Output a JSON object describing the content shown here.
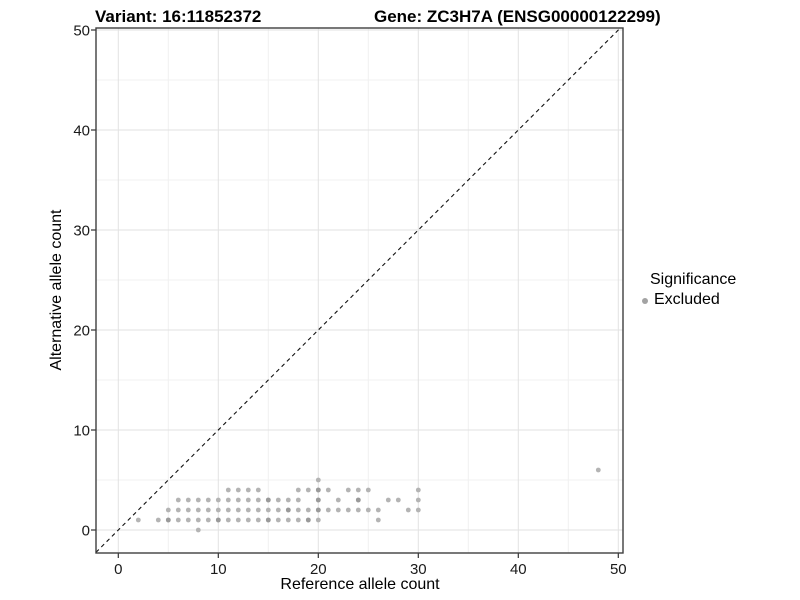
{
  "colors": {
    "background": "#ffffff",
    "panel_border": "#3f3f3f",
    "grid_major": "#e2e2e2",
    "grid_minor": "#f0f0f0",
    "identity_line": "#111111",
    "tick": "#333333",
    "text": "#1a1a1a",
    "point": "#b4b4b4",
    "point_dark": "#9a9a9a",
    "legend_dot": "#a3a3a3"
  },
  "chart_data": {
    "type": "scatter",
    "titles": {
      "left": "Variant: 16:11852372",
      "right": "Gene: ZC3H7A (ENSG00000122299)"
    },
    "xlabel": "Reference allele count",
    "ylabel": "Alternative allele count",
    "xlim": [
      -2.2,
      50.5
    ],
    "ylim": [
      -2.3,
      50.2
    ],
    "x_ticks": [
      0,
      10,
      20,
      30,
      40,
      50
    ],
    "y_ticks": [
      0,
      10,
      20,
      30,
      40,
      50
    ],
    "x_minor_ticks": [
      5,
      15,
      25,
      35,
      45
    ],
    "y_minor_ticks": [
      5,
      15,
      25,
      35,
      45
    ],
    "grid": true,
    "identity_line": {
      "equation": "y = x",
      "style": "dashed"
    },
    "legend": {
      "title": "Significance",
      "position": "right",
      "items": [
        {
          "label": "Excluded",
          "marker": "circle"
        }
      ]
    },
    "series": [
      {
        "name": "Excluded",
        "points": [
          [
            8,
            0
          ],
          [
            2,
            1
          ],
          [
            4,
            1
          ],
          [
            5,
            1
          ],
          [
            6,
            1
          ],
          [
            7,
            1
          ],
          [
            8,
            1
          ],
          [
            9,
            1
          ],
          [
            10,
            1
          ],
          [
            11,
            1
          ],
          [
            12,
            1
          ],
          [
            13,
            1
          ],
          [
            14,
            1
          ],
          [
            15,
            1
          ],
          [
            16,
            1
          ],
          [
            17,
            1
          ],
          [
            18,
            1
          ],
          [
            19,
            1
          ],
          [
            20,
            1
          ],
          [
            26,
            1
          ],
          [
            5,
            2
          ],
          [
            6,
            2
          ],
          [
            7,
            2
          ],
          [
            8,
            2
          ],
          [
            9,
            2
          ],
          [
            10,
            2
          ],
          [
            11,
            2
          ],
          [
            12,
            2
          ],
          [
            13,
            2
          ],
          [
            14,
            2
          ],
          [
            15,
            2
          ],
          [
            16,
            2
          ],
          [
            17,
            2
          ],
          [
            18,
            2
          ],
          [
            19,
            2
          ],
          [
            20,
            2
          ],
          [
            21,
            2
          ],
          [
            22,
            2
          ],
          [
            23,
            2
          ],
          [
            24,
            2
          ],
          [
            25,
            2
          ],
          [
            26,
            2
          ],
          [
            29,
            2
          ],
          [
            30,
            2
          ],
          [
            6,
            3
          ],
          [
            7,
            3
          ],
          [
            8,
            3
          ],
          [
            9,
            3
          ],
          [
            10,
            3
          ],
          [
            11,
            3
          ],
          [
            12,
            3
          ],
          [
            13,
            3
          ],
          [
            14,
            3
          ],
          [
            15,
            3
          ],
          [
            16,
            3
          ],
          [
            17,
            3
          ],
          [
            18,
            3
          ],
          [
            20,
            3
          ],
          [
            22,
            3
          ],
          [
            24,
            3
          ],
          [
            27,
            3
          ],
          [
            28,
            3
          ],
          [
            30,
            3
          ],
          [
            11,
            4
          ],
          [
            12,
            4
          ],
          [
            13,
            4
          ],
          [
            14,
            4
          ],
          [
            18,
            4
          ],
          [
            19,
            4
          ],
          [
            20,
            4
          ],
          [
            21,
            4
          ],
          [
            23,
            4
          ],
          [
            24,
            4
          ],
          [
            25,
            4
          ],
          [
            30,
            4
          ],
          [
            20,
            5
          ],
          [
            48,
            6
          ]
        ],
        "darker_overlap_points": [
          [
            5,
            1
          ],
          [
            10,
            1
          ],
          [
            15,
            1
          ],
          [
            19,
            1
          ],
          [
            17,
            2
          ],
          [
            20,
            2
          ],
          [
            15,
            3
          ],
          [
            20,
            3
          ],
          [
            24,
            3
          ],
          [
            20,
            4
          ]
        ]
      }
    ]
  }
}
